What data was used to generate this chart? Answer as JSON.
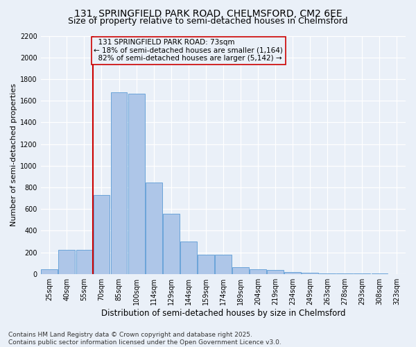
{
  "title1": "131, SPRINGFIELD PARK ROAD, CHELMSFORD, CM2 6EE",
  "title2": "Size of property relative to semi-detached houses in Chelmsford",
  "xlabel": "Distribution of semi-detached houses by size in Chelmsford",
  "ylabel": "Number of semi-detached properties",
  "categories": [
    "25sqm",
    "40sqm",
    "55sqm",
    "70sqm",
    "85sqm",
    "100sqm",
    "114sqm",
    "129sqm",
    "144sqm",
    "159sqm",
    "174sqm",
    "189sqm",
    "204sqm",
    "219sqm",
    "234sqm",
    "249sqm",
    "263sqm",
    "278sqm",
    "293sqm",
    "308sqm",
    "323sqm"
  ],
  "values": [
    45,
    225,
    225,
    730,
    1680,
    1665,
    845,
    555,
    300,
    180,
    180,
    65,
    40,
    35,
    20,
    10,
    5,
    5,
    3,
    2,
    0
  ],
  "bar_color": "#aec6e8",
  "bar_edgecolor": "#5b9bd5",
  "property_label": "131 SPRINGFIELD PARK ROAD: 73sqm",
  "pct_smaller": "18%",
  "pct_larger": "82%",
  "count_smaller": "1,164",
  "count_larger": "5,142",
  "ylim": [
    0,
    2200
  ],
  "yticks": [
    0,
    200,
    400,
    600,
    800,
    1000,
    1200,
    1400,
    1600,
    1800,
    2000,
    2200
  ],
  "footer1": "Contains HM Land Registry data © Crown copyright and database right 2025.",
  "footer2": "Contains public sector information licensed under the Open Government Licence v3.0.",
  "bg_color": "#eaf0f8",
  "grid_color": "#ffffff",
  "title1_fontsize": 10,
  "title2_fontsize": 9,
  "ylabel_fontsize": 8,
  "xlabel_fontsize": 8.5,
  "tick_fontsize": 7,
  "footer_fontsize": 6.5,
  "ann_fontsize": 7.5,
  "vline_color": "#cc0000",
  "vline_x": 2.5
}
